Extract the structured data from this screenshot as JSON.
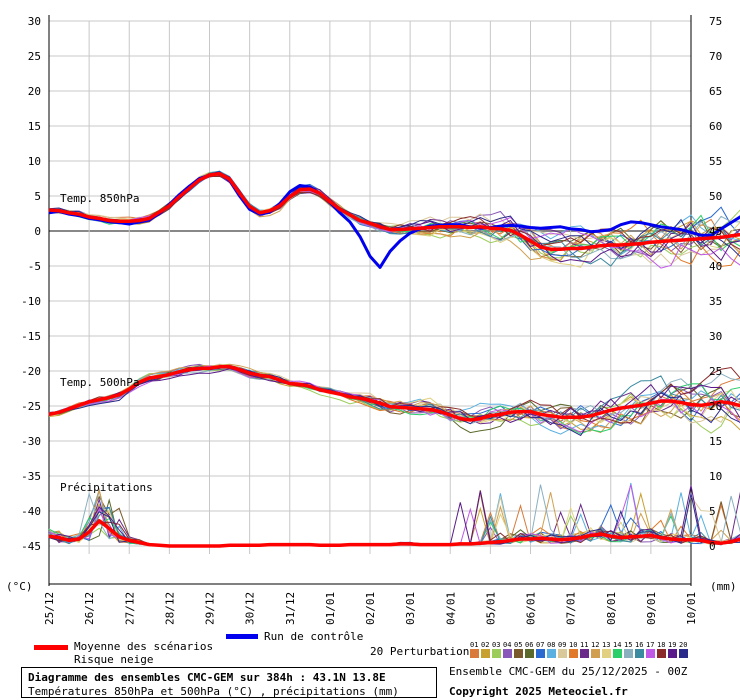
{
  "chart_data": {
    "type": "line",
    "left_axis": {
      "unit": "(°C)",
      "ticks": [
        30,
        25,
        20,
        15,
        10,
        5,
        0,
        -5,
        -10,
        -15,
        -20,
        -25,
        -30,
        -35,
        -40,
        -45
      ],
      "range": [
        -45,
        30
      ]
    },
    "right_axis": {
      "unit": "(mm)",
      "ticks": [
        75,
        70,
        65,
        60,
        55,
        50,
        45,
        40,
        35,
        30,
        25,
        20,
        15,
        10,
        5,
        0
      ],
      "range": [
        0,
        75
      ]
    },
    "x_labels": [
      "25/12",
      "26/12",
      "27/12",
      "28/12",
      "29/12",
      "30/12",
      "31/12",
      "01/01",
      "02/01",
      "03/01",
      "04/01",
      "05/01",
      "06/01",
      "07/01",
      "08/01",
      "09/01",
      "10/01"
    ],
    "sections": {
      "t850": "Temp. 850hPa",
      "t500": "Temp. 500hPa",
      "precip": "Précipitations"
    },
    "grid": true,
    "x_step_days": 0.25,
    "mean_t850": [
      3.0,
      2.9,
      2.6,
      2.4,
      2.0,
      1.8,
      1.5,
      1.4,
      1.4,
      1.5,
      1.8,
      2.7,
      3.6,
      4.9,
      6.1,
      7.3,
      8.0,
      8.2,
      7.4,
      5.4,
      3.5,
      2.6,
      2.9,
      3.6,
      4.9,
      5.9,
      6.0,
      5.4,
      4.2,
      3.1,
      2.3,
      1.5,
      1.1,
      0.6,
      0.2,
      0.2,
      0.3,
      0.4,
      0.5,
      0.6,
      0.6,
      0.6,
      0.5,
      0.6,
      0.4,
      0.3,
      0.1,
      -0.6,
      -1.4,
      -2.3,
      -2.6,
      -2.6,
      -2.5,
      -2.5,
      -2.3,
      -2.1,
      -2.0,
      -2.0,
      -1.9,
      -1.8,
      -1.6,
      -1.5,
      -1.4,
      -1.3,
      -1.2,
      -1.1,
      -1.0,
      -0.9,
      -0.7,
      -0.5,
      -0.4,
      -0.3,
      -0.2,
      -0.2,
      -0.2,
      -0.3,
      -0.4,
      -0.4,
      -0.5,
      -0.4,
      -0.3,
      -0.2,
      -0.2,
      -0.2,
      -0.2,
      -0.1,
      -0.1,
      0.0,
      0.0,
      0.0
    ],
    "control_t850": [
      2.6,
      2.8,
      2.4,
      2.2,
      1.8,
      1.6,
      1.3,
      1.2,
      1.0,
      1.3,
      1.6,
      2.5,
      3.8,
      5.2,
      6.4,
      7.5,
      8.0,
      8.3,
      7.2,
      5.0,
      3.1,
      2.4,
      2.7,
      3.9,
      5.6,
      6.5,
      6.3,
      5.4,
      4.1,
      2.6,
      1.3,
      -0.8,
      -3.6,
      -5.2,
      -2.9,
      -1.4,
      -0.3,
      0.3,
      0.7,
      0.8,
      0.9,
      0.9,
      0.6,
      0.4,
      0.5,
      0.7,
      0.8,
      0.7,
      0.5,
      0.4,
      0.5,
      0.6,
      0.3,
      0.2,
      -0.1,
      0.0,
      0.2,
      0.9,
      1.3,
      1.2,
      0.9,
      0.6,
      0.4,
      0.2,
      -0.2,
      -0.6,
      -0.6,
      0.3,
      1.2,
      2.1,
      2.9,
      3.4,
      3.6,
      3.7,
      3.6,
      3.3,
      3.0,
      2.3,
      1.6,
      0.7,
      0.4,
      1.2,
      2.1,
      2.9,
      3.9,
      5.0,
      5.8,
      6.4,
      6.6,
      6.9
    ],
    "mean_t500": [
      -26.2,
      -25.9,
      -25.4,
      -24.9,
      -24.4,
      -24.1,
      -23.8,
      -23.4,
      -22.6,
      -21.6,
      -21.0,
      -20.8,
      -20.5,
      -20.1,
      -19.8,
      -19.6,
      -19.6,
      -19.4,
      -19.4,
      -19.8,
      -20.3,
      -20.6,
      -20.8,
      -21.3,
      -21.8,
      -21.9,
      -22.2,
      -22.7,
      -23.0,
      -23.3,
      -23.7,
      -23.9,
      -24.2,
      -24.6,
      -25.1,
      -25.2,
      -25.3,
      -25.4,
      -25.5,
      -25.8,
      -26.3,
      -26.8,
      -27.0,
      -26.8,
      -26.4,
      -26.2,
      -25.9,
      -25.8,
      -25.8,
      -26.2,
      -26.4,
      -26.6,
      -26.6,
      -26.6,
      -26.4,
      -26.0,
      -25.6,
      -25.3,
      -25.1,
      -24.9,
      -24.6,
      -24.3,
      -24.3,
      -24.5,
      -24.8,
      -24.9,
      -24.7,
      -24.4,
      -24.6,
      -25.0,
      -25.1,
      -24.9,
      -24.6,
      -24.4,
      -24.5,
      -24.8,
      -25.0,
      -25.1,
      -25.2,
      -25.1,
      -25.0,
      -24.9,
      -25.0,
      -25.2,
      -25.3,
      -25.1,
      -25.0,
      -24.9,
      -24.8,
      -24.5
    ],
    "mean_precip_mm": [
      1.4,
      1.2,
      0.8,
      1.0,
      2.0,
      3.6,
      2.5,
      1.3,
      0.8,
      0.5,
      0.2,
      0.1,
      0.0,
      0.0,
      0.0,
      0.0,
      0.0,
      0.0,
      0.1,
      0.1,
      0.1,
      0.1,
      0.2,
      0.2,
      0.2,
      0.2,
      0.2,
      0.1,
      0.1,
      0.1,
      0.2,
      0.2,
      0.2,
      0.2,
      0.2,
      0.3,
      0.3,
      0.2,
      0.2,
      0.2,
      0.2,
      0.3,
      0.3,
      0.4,
      0.5,
      0.6,
      0.8,
      1.0,
      1.0,
      1.1,
      1.0,
      0.9,
      1.0,
      1.2,
      1.5,
      1.7,
      1.4,
      1.2,
      1.3,
      1.4,
      1.5,
      1.2,
      1.0,
      0.9,
      0.9,
      0.8,
      0.5,
      0.4,
      0.6,
      1.0,
      1.3,
      1.1,
      0.6,
      0.4,
      0.3,
      0.3,
      0.4,
      0.6,
      0.7,
      0.5,
      0.4,
      0.3,
      0.2,
      0.2,
      0.2,
      0.3,
      0.3,
      0.2,
      0.2,
      0.2
    ]
  },
  "legend": {
    "mean_label": "Moyenne des scénarios",
    "snow_label": "Risque neige",
    "control_label": "Run de contrôle",
    "perturbations_label": "20 Perturbations",
    "perturbation_numbers": [
      "01",
      "02",
      "03",
      "04",
      "05",
      "06",
      "07",
      "08",
      "09",
      "10",
      "11",
      "12",
      "13",
      "14",
      "15",
      "16",
      "17",
      "18",
      "19",
      "20"
    ],
    "perturbation_colors": [
      "#d97a3a",
      "#c8a030",
      "#9ccd5a",
      "#8a58b8",
      "#7a5a2a",
      "#5a6a2a",
      "#2a6ad0",
      "#5ab0e0",
      "#d8c89a",
      "#e07a2a",
      "#6a2a8a",
      "#d0a050",
      "#e0d080",
      "#2acf6a",
      "#8ab0c0",
      "#3a8aa0",
      "#c058e8",
      "#8a2a2a",
      "#5a1a8a",
      "#2a2a8a"
    ],
    "mean_color": "#ff0000",
    "control_color": "#0000ee"
  },
  "title": {
    "line1": "Diagramme des ensembles CMC-GEM sur 384h : 43.1N 13.8E",
    "line2": "Températures 850hPa et 500hPa (°C) , précipitations (mm)"
  },
  "run_info": "Ensemble CMC-GEM du 25/12/2025 - 00Z",
  "copyright": "Copyright 2025 Meteociel.fr"
}
